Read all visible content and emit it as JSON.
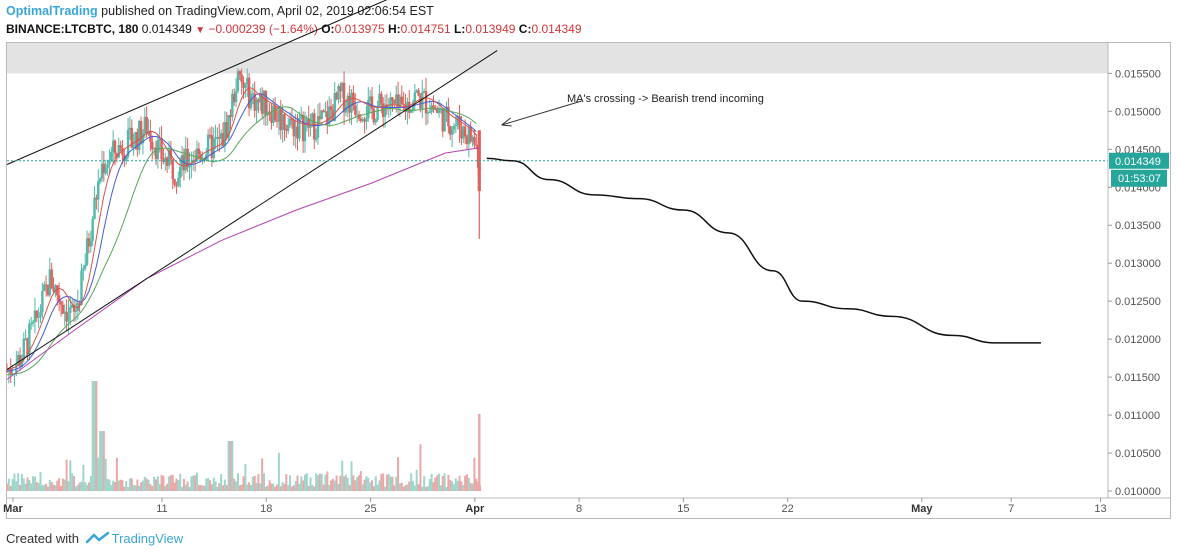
{
  "header": {
    "brand": "OptimalTrading",
    "published": "published on TradingView.com, April 02, 2019 02:06:54 EST",
    "symbol": "BINANCE:LTCBTC, 180",
    "last": "0.014349",
    "change_icon": "down-triangle-icon",
    "change": "−0.000239 (−1.64%)",
    "open_label": "O:",
    "open": "0.013975",
    "high_label": "H:",
    "high": "0.014751",
    "low_label": "L:",
    "low": "0.013949",
    "close_label": "C:",
    "close": "0.014349"
  },
  "footer": {
    "created_with": "Created with",
    "brand": "TradingView",
    "logo_icon": "tradingview-logo-icon"
  },
  "colors": {
    "up": "#53b9a8",
    "down": "#e0605c",
    "ma_fast": "#4a5bd8",
    "ma_mid": "#d9534f",
    "ma_slow": "#5aa55a",
    "ma_long": "#b542b5",
    "price_line": "#26a69a",
    "zone": "#d9d9d9"
  },
  "chart_data": {
    "type": "candlestick",
    "symbol": "LTCBTC",
    "exchange": "BINANCE",
    "timeframe": "180",
    "ylim": [
      0.01,
      0.0159
    ],
    "y_ticks": [
      "0.015500",
      "0.015000",
      "0.014500",
      "0.014000",
      "0.013500",
      "0.013000",
      "0.012500",
      "0.012000",
      "0.011500",
      "0.011000",
      "0.010500",
      "0.010000"
    ],
    "y_tick_values": [
      0.0155,
      0.015,
      0.0145,
      0.014,
      0.0135,
      0.013,
      0.0125,
      0.012,
      0.0115,
      0.011,
      0.0105,
      0.01
    ],
    "x_ticks": [
      {
        "label": "Mar",
        "day": 1,
        "bold": true
      },
      {
        "label": "11",
        "day": 11,
        "bold": false
      },
      {
        "label": "18",
        "day": 18,
        "bold": false
      },
      {
        "label": "25",
        "day": 25,
        "bold": false
      },
      {
        "label": "Apr",
        "day": 32,
        "bold": true
      },
      {
        "label": "8",
        "day": 39,
        "bold": false
      },
      {
        "label": "15",
        "day": 46,
        "bold": false
      },
      {
        "label": "22",
        "day": 53,
        "bold": false
      },
      {
        "label": "May",
        "day": 62,
        "bold": true
      },
      {
        "label": "7",
        "day": 68,
        "bold": false
      },
      {
        "label": "13",
        "day": 74,
        "bold": false
      }
    ],
    "x_range_days": [
      0.6,
      74.5
    ],
    "last_price": "0.014349",
    "last_price_value": 0.014349,
    "countdown": "01:53:07",
    "candles_path_days": [
      0.6,
      1.5,
      2.5,
      3.5,
      4.5,
      5.1,
      5.5,
      6,
      6.5,
      7,
      8,
      9,
      10,
      11,
      12,
      13,
      14,
      15,
      15.5,
      16,
      17,
      17.5,
      18,
      19,
      20,
      21,
      22,
      23,
      24,
      25,
      26,
      27,
      28,
      29,
      30,
      31,
      32,
      32.3
    ],
    "candles_path_values": [
      0.01158,
      0.01175,
      0.0122,
      0.0128,
      0.0124,
      0.0123,
      0.0126,
      0.0132,
      0.0138,
      0.0143,
      0.0145,
      0.0146,
      0.0148,
      0.0144,
      0.0142,
      0.0144,
      0.0145,
      0.0146,
      0.0149,
      0.0154,
      0.0152,
      0.0151,
      0.0151,
      0.0149,
      0.0148,
      0.0148,
      0.0149,
      0.0152,
      0.0151,
      0.015,
      0.0151,
      0.015,
      0.0152,
      0.0151,
      0.0149,
      0.0148,
      0.0146,
      0.01435
    ],
    "resistance_zone": [
      0.0155,
      0.0159
    ],
    "trendline_upper": [
      [
        0.6,
        0.0143
      ],
      [
        33.5,
        0.0171
      ]
    ],
    "trendline_lower": [
      [
        0.6,
        0.0116
      ],
      [
        33.5,
        0.0158
      ]
    ],
    "ma_long_points": [
      [
        0.6,
        0.01147
      ],
      [
        5,
        0.0121
      ],
      [
        10,
        0.0128
      ],
      [
        15,
        0.0133
      ],
      [
        20,
        0.0137
      ],
      [
        25,
        0.01405
      ],
      [
        30,
        0.01445
      ],
      [
        32.3,
        0.01452
      ]
    ],
    "projection_points": [
      [
        32.8,
        0.01438
      ],
      [
        34.5,
        0.01435
      ],
      [
        37,
        0.0141
      ],
      [
        40,
        0.0139
      ],
      [
        43,
        0.01385
      ],
      [
        46,
        0.0137
      ],
      [
        49,
        0.0134
      ],
      [
        52,
        0.0129
      ],
      [
        54,
        0.0125
      ],
      [
        57,
        0.0124
      ],
      [
        60,
        0.0123
      ],
      [
        64,
        0.01205
      ],
      [
        67,
        0.01195
      ],
      [
        70,
        0.01195
      ]
    ],
    "volume_max_label": "",
    "annotation": "MA's crossing -> Bearish trend incoming",
    "annotation_arrow_tip": [
      33.8,
      0.01482
    ]
  }
}
